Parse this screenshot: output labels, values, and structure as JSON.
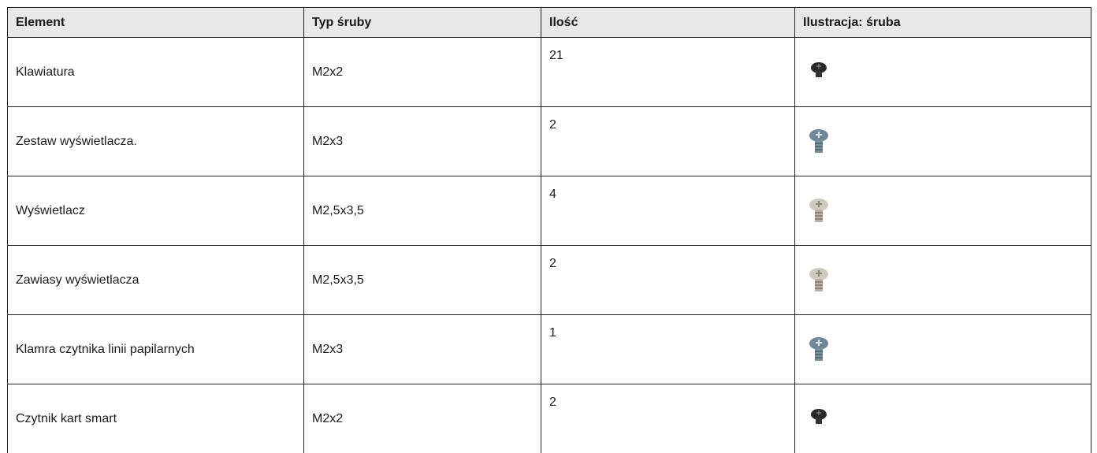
{
  "table": {
    "header": [
      "Element",
      "Typ śruby",
      "Ilość",
      "Ilustracja: śruba"
    ],
    "rows": [
      [
        "Klawiatura",
        "M2x2",
        21
      ],
      [
        "Zestaw wyświetlacza.",
        "M2x3",
        2
      ],
      [
        "Wyświetlacz",
        "M2,5x3,5",
        4
      ],
      [
        "Zawiasy wyświetlacza",
        "M2,5x3,5",
        2
      ],
      [
        "Klamra czytnika linii papilarnych",
        "M2x3",
        1
      ],
      [
        "Czytnik kart smart",
        "M2x2",
        2
      ]
    ]
  }
}
